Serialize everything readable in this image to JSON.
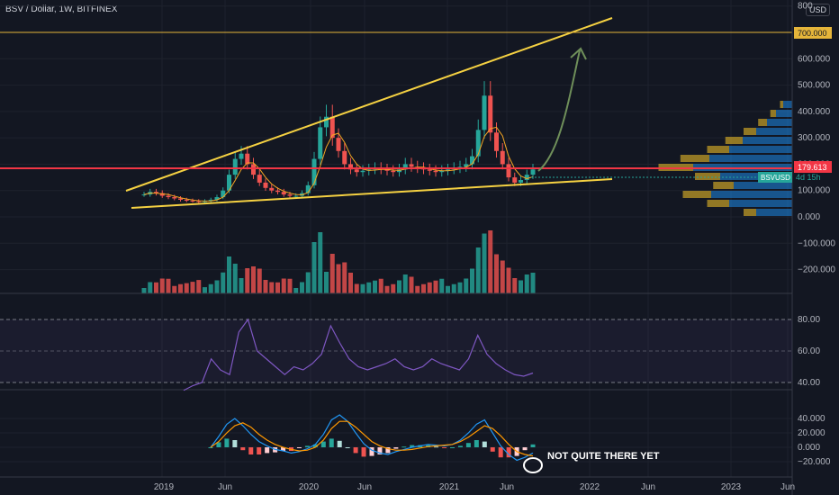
{
  "header": {
    "symbol_line": "BSV / Dollar, 1W, BITFINEX"
  },
  "currency_badge": "USD",
  "colors": {
    "up": "#26a69a",
    "down": "#ef5350",
    "trend": "#f5d142",
    "level": "#e5b53a",
    "red_level": "#f23645",
    "rsi": "#7e57c2",
    "macd": "#2196f3",
    "signal": "#ff9800",
    "arrow": "#6f8f5a"
  },
  "chart_data": [
    {
      "type": "line",
      "title": "",
      "price_axis_ticks": [
        "800",
        "700.000",
        "600.000",
        "500.000",
        "400.000",
        "300.000",
        "200.000",
        "100.000",
        "0.000",
        "−100.000",
        "−200.000"
      ],
      "ylim": [
        -250,
        800
      ],
      "x_labels": [
        "2019",
        "Jun",
        "2020",
        "Jun",
        "2021",
        "Jun",
        "2022",
        "Jun",
        "2023",
        "Jun"
      ],
      "series": [
        {
          "values": [
            85,
            95,
            90,
            80,
            75,
            70,
            65,
            62,
            60,
            58,
            60,
            65,
            75,
            100,
            160,
            220,
            240,
            200,
            160,
            130,
            110,
            100,
            95,
            85,
            80,
            80,
            90,
            120,
            220,
            340,
            380,
            300,
            250,
            200,
            180,
            170,
            175,
            180,
            185,
            180,
            175,
            170,
            180,
            200,
            190,
            185,
            180,
            175,
            170,
            175,
            180,
            185,
            190,
            200,
            230,
            330,
            460,
            320,
            250,
            200,
            150,
            130,
            140,
            160,
            180
          ]
        }
      ],
      "levels": {
        "top_level": "700.000",
        "red_level": "179.613",
        "ticker_badge": "BSVUSD",
        "countdown": "4d 15h"
      },
      "annotations": []
    },
    {
      "type": "line",
      "ylim": [
        25,
        85
      ],
      "ticks": [
        "80.00",
        "60.00",
        "40.00"
      ],
      "series": [
        {
          "values": [
            35,
            38,
            40,
            55,
            48,
            45,
            72,
            80,
            60,
            55,
            50,
            45,
            50,
            48,
            52,
            58,
            76,
            65,
            55,
            50,
            48,
            50,
            52,
            55,
            50,
            48,
            50,
            55,
            52,
            50,
            48,
            55,
            70,
            58,
            52,
            48,
            45,
            44,
            46
          ]
        }
      ]
    },
    {
      "type": "bar",
      "ylim": [
        -28,
        55
      ],
      "ticks": [
        "40.000",
        "20.000",
        "0.000",
        "−20.000"
      ],
      "series": [
        {
          "values": [
            0,
            15,
            32,
            40,
            30,
            18,
            8,
            2,
            -3,
            -5,
            -8,
            -6,
            -2,
            4,
            18,
            38,
            45,
            36,
            20,
            5,
            -4,
            -8,
            -10,
            -6,
            -3,
            0,
            2,
            4,
            3,
            2,
            4,
            10,
            20,
            32,
            38,
            20,
            2,
            -10,
            -18,
            -14,
            -8
          ]
        },
        {
          "values": [
            0,
            8,
            20,
            30,
            34,
            28,
            18,
            10,
            4,
            0,
            -3,
            -5,
            -4,
            0,
            10,
            26,
            36,
            36,
            28,
            18,
            8,
            2,
            -2,
            -4,
            -4,
            -3,
            -1,
            1,
            2,
            3,
            4,
            8,
            14,
            22,
            30,
            26,
            16,
            4,
            -6,
            -10,
            -12
          ]
        }
      ],
      "annotations": [
        "NOT QUITE THERE YET"
      ]
    }
  ]
}
